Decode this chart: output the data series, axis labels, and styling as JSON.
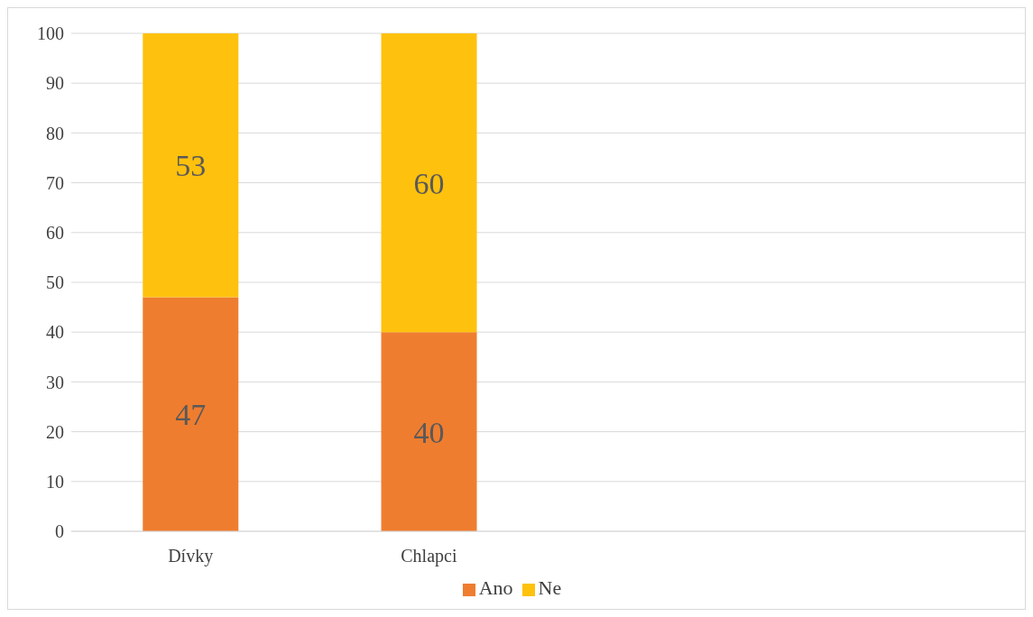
{
  "chart_data": {
    "type": "bar",
    "stacked": true,
    "categories": [
      "Dívky",
      "Chlapci",
      null,
      null
    ],
    "series": [
      {
        "name": "Ano",
        "color": "#ef7d2f",
        "values": [
          47,
          40,
          null,
          null
        ]
      },
      {
        "name": "Ne",
        "color": "#fec10d",
        "values": [
          53,
          60,
          null,
          null
        ]
      }
    ],
    "ylim": [
      0,
      100
    ],
    "yticks": [
      0,
      10,
      20,
      30,
      40,
      50,
      60,
      70,
      80,
      90,
      100
    ],
    "grid": "y",
    "legend": "bottom",
    "data_labels": true
  }
}
